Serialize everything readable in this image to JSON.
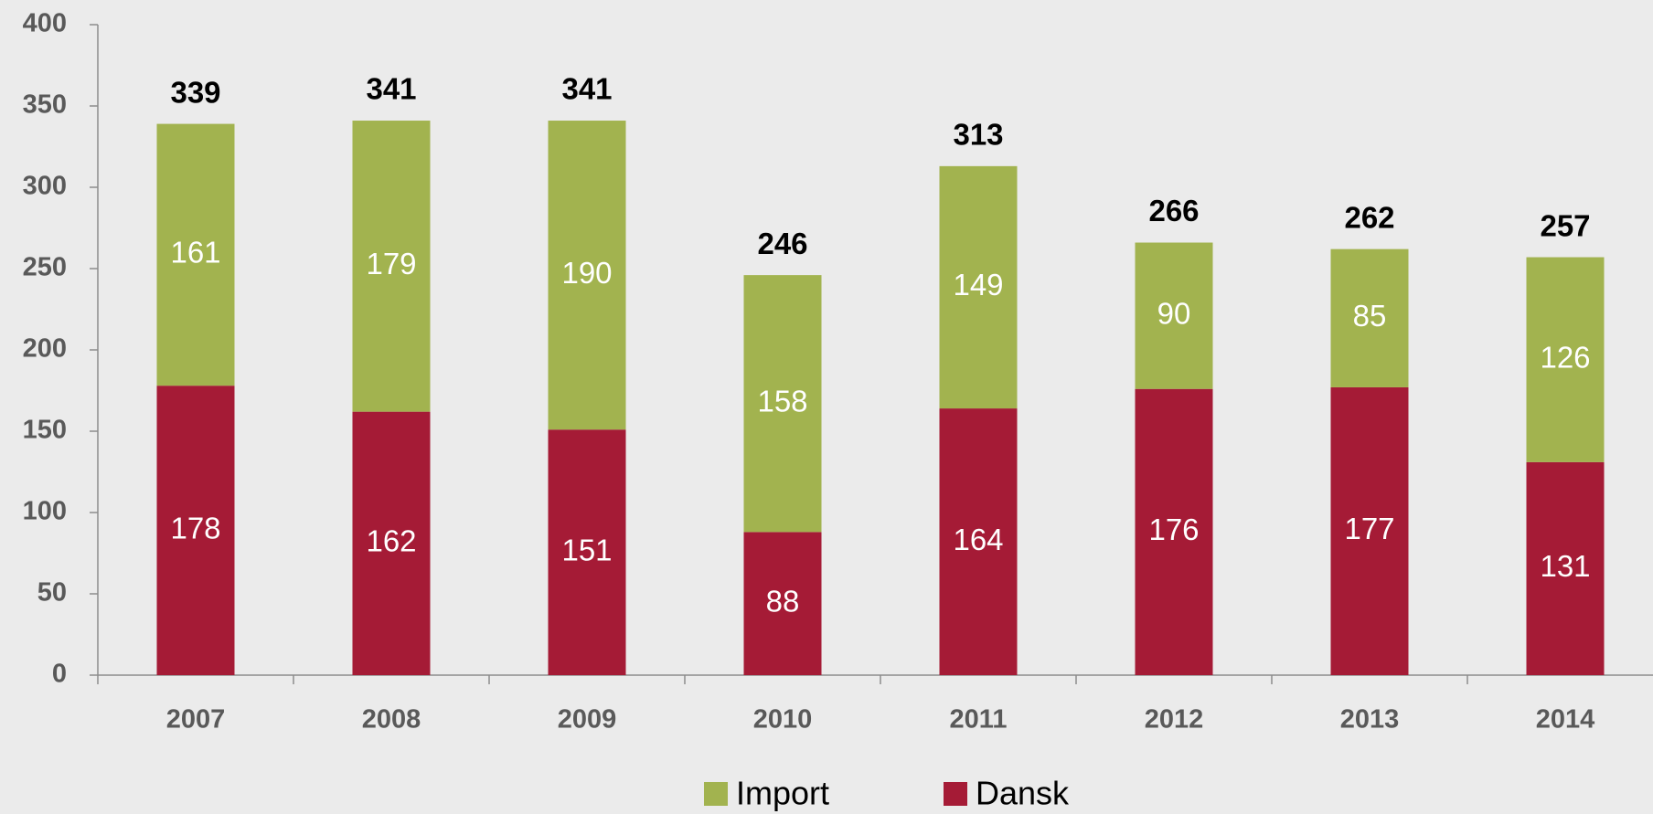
{
  "chart_data": {
    "type": "stacked_bar",
    "categories": [
      "2007",
      "2008",
      "2009",
      "2010",
      "2011",
      "2012",
      "2013",
      "2014"
    ],
    "series": [
      {
        "name": "Dansk",
        "color": "#a51b36",
        "values": [
          178,
          162,
          151,
          88,
          164,
          176,
          177,
          131
        ]
      },
      {
        "name": "Import",
        "color": "#a2b34f",
        "values": [
          161,
          179,
          190,
          158,
          149,
          90,
          85,
          126
        ]
      }
    ],
    "totals": [
      339,
      341,
      341,
      246,
      313,
      266,
      262,
      257
    ],
    "ylim": [
      0,
      400
    ],
    "yticks": [
      0,
      50,
      100,
      150,
      200,
      250,
      300,
      350,
      400
    ],
    "grid": false
  }
}
